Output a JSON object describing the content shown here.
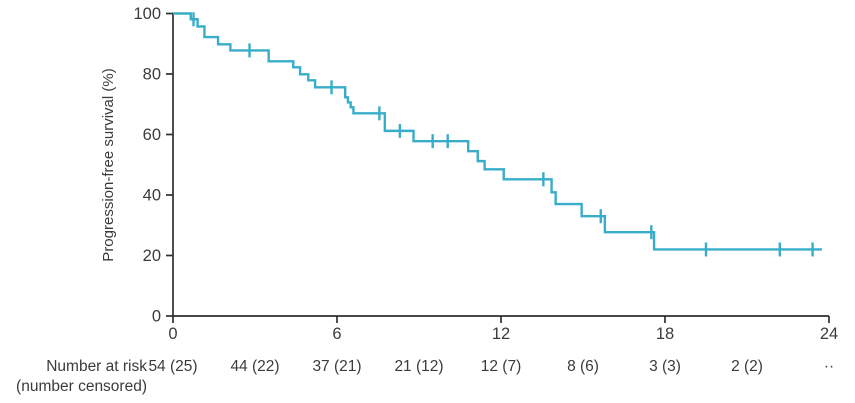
{
  "chart_data": {
    "type": "line",
    "chart_kind": "kaplan-meier-step",
    "title": "",
    "xlabel": "",
    "ylabel": "Progression-free survival (%)",
    "xlim": [
      0,
      24
    ],
    "ylim": [
      0,
      100
    ],
    "x_ticks": [
      "0",
      "6",
      "12",
      "18",
      "24"
    ],
    "x_tick_values": [
      0,
      6,
      12,
      18,
      24
    ],
    "y_ticks": [
      "0",
      "20",
      "40",
      "60",
      "80",
      "100"
    ],
    "y_tick_values": [
      0,
      20,
      40,
      60,
      80,
      100
    ],
    "grid": "off",
    "legend": "none",
    "line_color": "#38adc9",
    "axis_color": "#2f2f2f",
    "text_color": "#3b3b3b",
    "series": [
      {
        "name": "Progression-free survival",
        "start": [
          0,
          100
        ],
        "end_t": 23.74,
        "steps": [
          [
            0.65,
            98.1
          ],
          [
            0.9,
            95.7
          ],
          [
            1.15,
            92.2
          ],
          [
            1.65,
            89.8
          ],
          [
            2.1,
            87.8
          ],
          [
            3.5,
            84.2
          ],
          [
            4.4,
            82.2
          ],
          [
            4.65,
            79.9
          ],
          [
            4.95,
            77.9
          ],
          [
            5.2,
            75.6
          ],
          [
            6.3,
            72.3
          ],
          [
            6.4,
            70.6
          ],
          [
            6.5,
            69.0
          ],
          [
            6.6,
            67.0
          ],
          [
            7.75,
            61.2
          ],
          [
            8.8,
            57.8
          ],
          [
            10.8,
            54.5
          ],
          [
            11.15,
            51.2
          ],
          [
            11.4,
            48.5
          ],
          [
            12.1,
            45.2
          ],
          [
            13.85,
            40.9
          ],
          [
            14.0,
            37.0
          ],
          [
            14.95,
            33.0
          ],
          [
            15.8,
            27.7
          ],
          [
            17.6,
            22.0
          ]
        ],
        "censor_marks": [
          [
            0.75,
            98.1
          ],
          [
            2.8,
            87.8
          ],
          [
            5.8,
            75.6
          ],
          [
            7.55,
            67.0
          ],
          [
            8.3,
            61.2
          ],
          [
            9.5,
            57.8
          ],
          [
            10.05,
            57.8
          ],
          [
            13.55,
            45.2
          ],
          [
            15.65,
            33.0
          ],
          [
            17.5,
            27.7
          ],
          [
            19.5,
            22.0
          ],
          [
            22.2,
            22.0
          ],
          [
            23.4,
            22.0
          ]
        ]
      }
    ]
  },
  "risk_table": {
    "label_line1": "Number at risk",
    "label_line2": "(number censored)",
    "times": [
      0,
      3,
      6,
      9,
      12,
      15,
      18,
      21,
      24
    ],
    "values": [
      "54 (25)",
      "44 (22)",
      "37 (21)",
      "21 (12)",
      "12 (7)",
      "8 (6)",
      "3 (3)",
      "2 (2)",
      "··"
    ]
  }
}
